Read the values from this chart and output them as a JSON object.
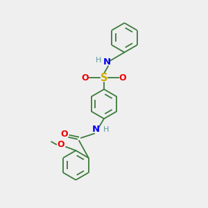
{
  "background_color": "#efefef",
  "bond_color": "#3a7a3a",
  "atom_colors": {
    "N": "#0000ee",
    "O": "#ee0000",
    "S": "#ccaa00",
    "H": "#5a9a9a",
    "C": "#3a7a3a"
  },
  "lw": 1.3,
  "fs": 8.0,
  "r": 0.72
}
